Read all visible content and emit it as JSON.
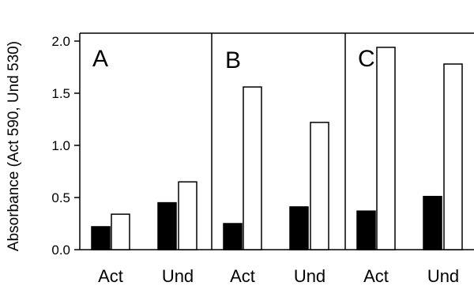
{
  "chart_data": {
    "type": "bar",
    "ylabel": "Absorbance (Act 590, Und 530)",
    "ylim": [
      0,
      2.0
    ],
    "yticks": [
      "0.0",
      "0.5",
      "1.0",
      "1.5",
      "2.0"
    ],
    "grid": false,
    "colors": {
      "filled": "#000000",
      "open": "#ffffff",
      "stroke": "#000000"
    },
    "panels": [
      {
        "label": "A",
        "categories": [
          "Act",
          "Und"
        ],
        "series": [
          {
            "fill": "filled",
            "values": [
              0.22,
              0.45
            ]
          },
          {
            "fill": "open",
            "values": [
              0.34,
              0.65
            ]
          }
        ]
      },
      {
        "label": "B",
        "categories": [
          "Act",
          "Und"
        ],
        "series": [
          {
            "fill": "filled",
            "values": [
              0.25,
              0.41
            ]
          },
          {
            "fill": "open",
            "values": [
              1.56,
              1.22
            ]
          }
        ]
      },
      {
        "label": "C",
        "categories": [
          "Act",
          "Und"
        ],
        "series": [
          {
            "fill": "filled",
            "values": [
              0.37,
              0.51
            ]
          },
          {
            "fill": "open",
            "values": [
              1.94,
              1.78
            ]
          }
        ]
      }
    ]
  }
}
